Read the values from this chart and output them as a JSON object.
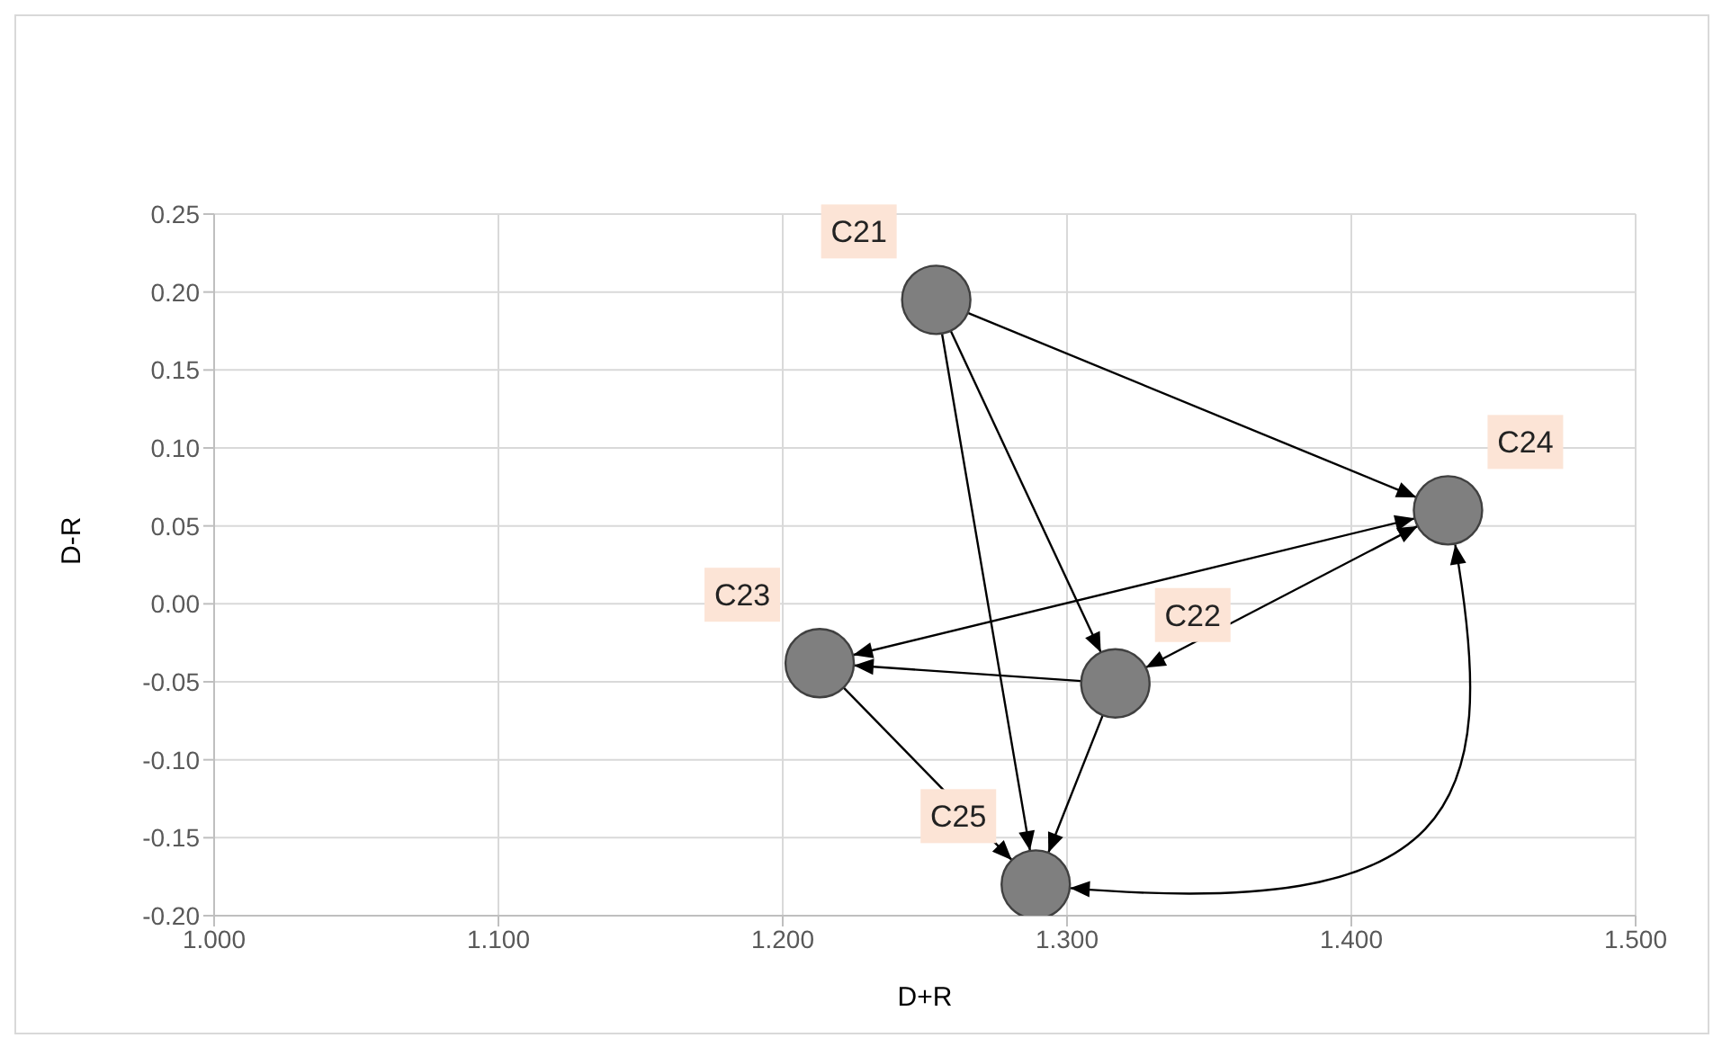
{
  "chart_data": {
    "type": "scatter",
    "xlabel": "D+R",
    "ylabel": "D-R",
    "x": [
      1.254,
      1.317,
      1.213,
      1.434,
      1.289
    ],
    "values": [
      0.195,
      -0.051,
      -0.038,
      0.06,
      -0.18
    ],
    "color": "#7f7f7f",
    "marker": "circle",
    "grid": true,
    "legend": false,
    "xlim": [
      1.0,
      1.5
    ],
    "xticks": [
      {
        "value": 1.0,
        "label": "1.000"
      },
      {
        "value": 1.1,
        "label": "1.100"
      },
      {
        "value": 1.2,
        "label": "1.200"
      },
      {
        "value": 1.3,
        "label": "1.300"
      },
      {
        "value": 1.4,
        "label": "1.400"
      },
      {
        "value": 1.5,
        "label": "1.500"
      }
    ],
    "ylim": [
      -0.2,
      0.25
    ],
    "yticks": [
      0.25,
      {
        "value": 0.2,
        "label": "0.20"
      },
      0.15,
      {
        "value": 0.1,
        "label": "0.10"
      },
      0.05,
      {
        "value": 0,
        "label": "0.00"
      },
      -0.05,
      {
        "value": -0.1,
        "label": "-0.10"
      },
      -0.15,
      {
        "value": -0.2,
        "label": "-0.20"
      }
    ],
    "annotations": [
      {
        "text": "C21",
        "x": 1.254,
        "y": 0.195
      },
      {
        "text": "C22",
        "x": 1.317,
        "y": -0.051
      },
      {
        "text": "C23",
        "x": 1.213,
        "y": -0.038
      },
      {
        "text": "C24",
        "x": 1.434,
        "y": 0.06
      },
      {
        "text": "C25",
        "x": 1.289,
        "y": -0.18
      }
    ]
  }
}
